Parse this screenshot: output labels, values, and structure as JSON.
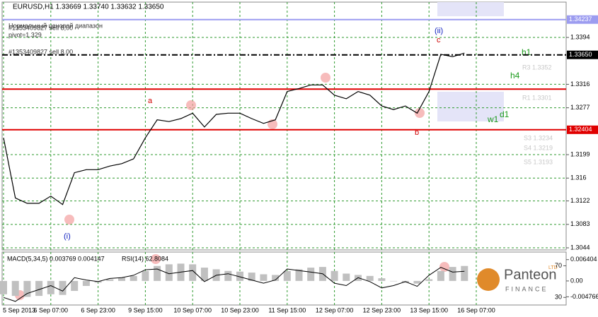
{
  "chart_data": [
    {
      "type": "line",
      "title": "EURUSD,H1  1.33669 1.33740 1.33632 1.33650",
      "categories": [
        "5 Sep 2013",
        null,
        null,
        null,
        "6 Sep 07:00",
        null,
        null,
        null,
        "6 Sep 23:00",
        null,
        null,
        null,
        "9 Sep 15:00",
        null,
        null,
        null,
        "10 Sep 07:00",
        null,
        null,
        null,
        "10 Sep 23:00",
        null,
        null,
        null,
        "11 Sep 15:00",
        null,
        null,
        null,
        "12 Sep 07:00",
        null,
        null,
        null,
        "12 Sep 23:00",
        null,
        null,
        null,
        "13 Sep 15:00",
        null,
        null,
        null,
        "16 Sep 07:00"
      ],
      "values": [
        1.3227,
        1.3127,
        1.3118,
        1.3118,
        1.313,
        1.3116,
        1.3169,
        1.3174,
        1.3174,
        1.318,
        1.3184,
        1.3192,
        1.3227,
        1.3257,
        1.3254,
        1.3259,
        1.3268,
        1.3245,
        1.3266,
        1.3268,
        1.3268,
        1.3259,
        1.3251,
        1.3257,
        1.3304,
        1.3309,
        1.3315,
        1.3315,
        1.3298,
        1.3292,
        1.3304,
        1.3298,
        1.328,
        1.3274,
        1.328,
        1.3268,
        1.3304,
        1.3366,
        1.3362,
        1.3368,
        null
      ],
      "color": "#000000",
      "ylim": [
        1.30405,
        1.34504
      ],
      "yticks": [
        1.3044,
        1.3083,
        1.3122,
        1.316,
        1.3199,
        1.3277,
        1.3316,
        1.3394
      ],
      "grid": true,
      "levels": [
        {
          "value": 1.3365,
          "label": "1.33650",
          "color": "#000000"
        },
        {
          "value": 1.32404,
          "label": "1.32404",
          "color": "#e00000"
        },
        {
          "value": 1.3308,
          "color": "#e00000"
        },
        {
          "value": 1.34237,
          "label": "1.34237",
          "color": "#9c9cf0"
        }
      ],
      "annotations": [
        "a",
        "(i)",
        "(ii)",
        "c",
        "b",
        "h1",
        "h4",
        "d1",
        "w1",
        "Нормальный ценовой диапазон",
        "#1353409827 sell 8,00",
        "pivot=1.329",
        "#1353409827 sell 8,00",
        "R3 1.3352",
        "R1 1.3301",
        "S3 1.3234",
        "S4 1.3219",
        "S5 1.3193"
      ]
    },
    {
      "type": "bar",
      "title": "MACD(5,34,5) 0.003769 0.004147",
      "subtitle": "RSI(14) 62.8084",
      "series": [
        {
          "color": "#c0c0c0",
          "values": [
            -0.004,
            -0.0045,
            -0.0048,
            -0.0045,
            -0.004,
            -0.0042,
            -0.003,
            -0.0015,
            -0.0005,
            0.0005,
            0.001,
            0.0015,
            0.003,
            0.0045,
            0.005,
            0.0052,
            0.005,
            0.004,
            0.0035,
            0.003,
            0.0028,
            0.0025,
            0.002,
            0.0018,
            0.003,
            0.0035,
            0.004,
            0.0042,
            0.003,
            0.0022,
            0.0018,
            0.0015,
            0.0008,
            0.0,
            -0.0005,
            -0.0008,
            0.0005,
            0.003,
            0.0042,
            0.0045,
            null
          ]
        },
        {
          "color": "#000000",
          "axis": "y2",
          "values": [
            30,
            25,
            35,
            40,
            45,
            38,
            55,
            52,
            50,
            54,
            55,
            58,
            65,
            66,
            60,
            62,
            64,
            50,
            58,
            60,
            56,
            52,
            48,
            52,
            66,
            64,
            62,
            60,
            48,
            45,
            55,
            50,
            42,
            45,
            50,
            44,
            58,
            68,
            62,
            63,
            null
          ]
        }
      ],
      "ylim": [
        -0.00702,
        0.00847
      ],
      "yticks": [
        0.006404,
        {
          "value": 0,
          "label": "0.00"
        },
        -0.004766
      ],
      "y2lim": [
        21.3,
        86.5
      ],
      "y2ticks": [
        70,
        30
      ]
    }
  ],
  "logo": {
    "name": "Panteon",
    "sub": "FINANCE",
    "badge": "LTD"
  }
}
